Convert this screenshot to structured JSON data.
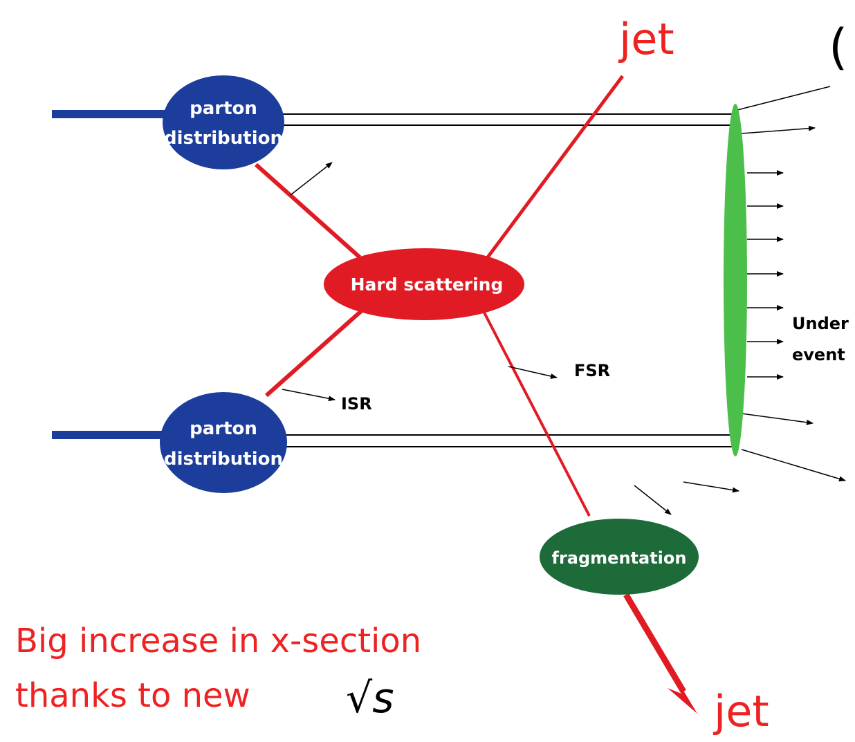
{
  "diagram": {
    "jet_top_label": "jet",
    "jet_bottom_label": "jet",
    "partial_top_label": "(",
    "parton_top": [
      "parton",
      "distribution"
    ],
    "parton_bottom": [
      "parton",
      "distribution"
    ],
    "hard_scattering": "Hard scattering",
    "fragmentation": "fragmentation",
    "isr": "ISR",
    "fsr": "FSR",
    "underlying_event": [
      "Under",
      "event"
    ],
    "caption_line1": "Big increase in x-section",
    "caption_line2": "thanks to new",
    "caption_formula": "√s",
    "colors": {
      "parton_blue": "#1c3d9c",
      "hard_red": "#e01b24",
      "fragmentation_green": "#1e6b3a",
      "underlying_green": "#4cbf4a",
      "caption_red": "#ee2222"
    }
  }
}
